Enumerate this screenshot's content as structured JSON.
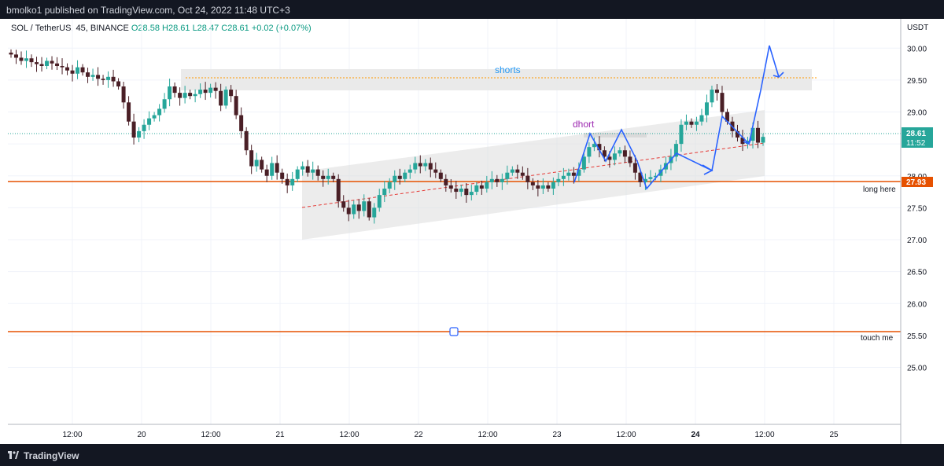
{
  "header": {
    "published": "bmolko1 published on TradingView.com, Oct 24, 2022 11:48 UTC+3"
  },
  "footer": {
    "brand": "TradingView"
  },
  "legend": {
    "symbol": "SOL / TetherUS, 45, BINANCE",
    "open": "O28.58",
    "high": "H28.61",
    "low": "L28.47",
    "close": "C28.61",
    "change": "+0.02 (+0.07%)"
  },
  "axis": {
    "currency": "USDT",
    "y_ticks": [
      "30.00",
      "29.50",
      "29.00",
      "28.50",
      "28.00",
      "27.50",
      "27.00",
      "26.50",
      "26.00",
      "25.50",
      "25.00"
    ],
    "x_ticks": [
      "12:00",
      "20",
      "12:00",
      "21",
      "12:00",
      "22",
      "12:00",
      "23",
      "12:00",
      "24",
      "12:00",
      "25"
    ],
    "price_label": "28.61",
    "countdown": "11:52",
    "line_label": "27.93"
  },
  "annotations": {
    "shorts": "shorts",
    "dhort": "dhort",
    "long_here": "long here",
    "touch_me": "touch me"
  },
  "colors": {
    "up": "#26a69a",
    "down": "#4a1f26",
    "orange_line": "#e65100",
    "arrow": "#2962ff",
    "shorts_text": "#2196f3",
    "dhort_text": "#9c27b0"
  },
  "chart_data": {
    "type": "candlestick",
    "symbol": "SOL / TetherUS",
    "interval": "45",
    "exchange": "BINANCE",
    "currency": "USDT",
    "ylim": [
      24.6,
      30.2
    ],
    "horizontal_lines": [
      {
        "value": 27.93,
        "label": "long here"
      },
      {
        "value": 25.85,
        "label": "touch me"
      }
    ],
    "zones": [
      {
        "label": "shorts",
        "from": 29.2,
        "to": 29.5
      }
    ],
    "channel": {
      "lower_start": 27.12,
      "lower_end": 28.02,
      "upper_start": 27.78,
      "upper_end": 28.92
    },
    "closes": [
      29.9,
      29.85,
      29.8,
      29.84,
      29.78,
      29.75,
      29.72,
      29.8,
      29.76,
      29.72,
      29.7,
      29.65,
      29.6,
      29.7,
      29.62,
      29.55,
      29.58,
      29.52,
      29.5,
      29.55,
      29.48,
      29.4,
      29.15,
      28.85,
      28.6,
      28.7,
      28.8,
      28.9,
      28.95,
      29.05,
      29.2,
      29.4,
      29.3,
      29.22,
      29.3,
      29.25,
      29.28,
      29.35,
      29.3,
      29.38,
      29.33,
      29.1,
      29.35,
      29.25,
      28.95,
      28.7,
      28.4,
      28.15,
      28.25,
      28.1,
      28.0,
      28.2,
      28.05,
      27.95,
      27.85,
      27.95,
      28.1,
      28.15,
      28.05,
      28.1,
      28.0,
      27.95,
      28.0,
      27.95,
      27.6,
      27.5,
      27.4,
      27.55,
      27.45,
      27.6,
      27.35,
      27.5,
      27.7,
      27.8,
      27.9,
      28.0,
      27.95,
      28.05,
      28.1,
      28.2,
      28.15,
      28.2,
      28.1,
      28.05,
      27.95,
      27.85,
      27.8,
      27.75,
      27.8,
      27.7,
      27.75,
      27.85,
      27.8,
      27.9,
      27.95,
      27.9,
      27.95,
      28.05,
      28.1,
      28.05,
      28.0,
      27.9,
      27.85,
      27.8,
      27.85,
      27.8,
      27.9,
      27.95,
      28.0,
      28.05,
      28.0,
      28.1,
      28.3,
      28.45,
      28.5,
      28.4,
      28.3,
      28.25,
      28.35,
      28.4,
      28.3,
      28.2,
      28.05,
      27.9,
      27.95,
      27.98,
      28.0,
      28.1,
      28.2,
      28.3,
      28.5,
      28.8,
      28.85,
      28.8,
      28.85,
      28.95,
      29.15,
      29.35,
      29.3,
      29.0,
      28.85,
      28.7,
      28.6,
      28.5,
      28.55,
      28.75,
      28.52,
      28.61
    ],
    "x_ticks": [
      "12:00",
      "20",
      "12:00",
      "21",
      "12:00",
      "22",
      "12:00",
      "23",
      "12:00",
      "24",
      "12:00",
      "25"
    ],
    "y_ticks": [
      30.0,
      29.5,
      29.0,
      28.5,
      28.0,
      27.5,
      27.0,
      26.5,
      26.0,
      25.5,
      25.0
    ]
  }
}
